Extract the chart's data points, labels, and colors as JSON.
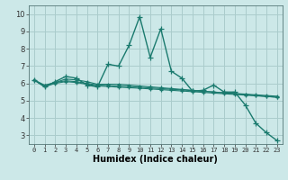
{
  "xlabel": "Humidex (Indice chaleur)",
  "background_color": "#cce8e8",
  "grid_color": "#aacccc",
  "line_color": "#1a7a6e",
  "xlim": [
    -0.5,
    23.5
  ],
  "ylim": [
    2.5,
    10.5
  ],
  "yticks": [
    3,
    4,
    5,
    6,
    7,
    8,
    9,
    10
  ],
  "xticks": [
    0,
    1,
    2,
    3,
    4,
    5,
    6,
    7,
    8,
    9,
    10,
    11,
    12,
    13,
    14,
    15,
    16,
    17,
    18,
    19,
    20,
    21,
    22,
    23
  ],
  "series": [
    [
      6.2,
      5.8,
      6.1,
      6.4,
      6.3,
      5.9,
      5.8,
      7.1,
      7.0,
      8.2,
      9.85,
      7.5,
      9.15,
      6.7,
      6.3,
      5.55,
      5.6,
      5.9,
      5.5,
      5.5,
      4.75,
      3.7,
      3.15,
      2.7
    ],
    [
      6.2,
      5.9,
      6.05,
      6.25,
      6.2,
      6.1,
      5.95,
      5.95,
      5.95,
      5.9,
      5.85,
      5.8,
      5.75,
      5.7,
      5.65,
      5.6,
      5.55,
      5.5,
      5.45,
      5.4,
      5.35,
      5.3,
      5.25,
      5.2
    ],
    [
      6.2,
      5.85,
      6.05,
      6.15,
      6.1,
      6.0,
      5.9,
      5.88,
      5.85,
      5.82,
      5.78,
      5.74,
      5.7,
      5.66,
      5.62,
      5.58,
      5.54,
      5.5,
      5.46,
      5.42,
      5.38,
      5.34,
      5.3,
      5.26
    ],
    [
      6.2,
      5.8,
      6.0,
      6.1,
      6.05,
      5.95,
      5.85,
      5.82,
      5.78,
      5.75,
      5.72,
      5.68,
      5.64,
      5.6,
      5.56,
      5.52,
      5.48,
      5.44,
      5.4,
      5.36,
      5.32,
      5.28,
      5.24,
      5.2
    ]
  ]
}
